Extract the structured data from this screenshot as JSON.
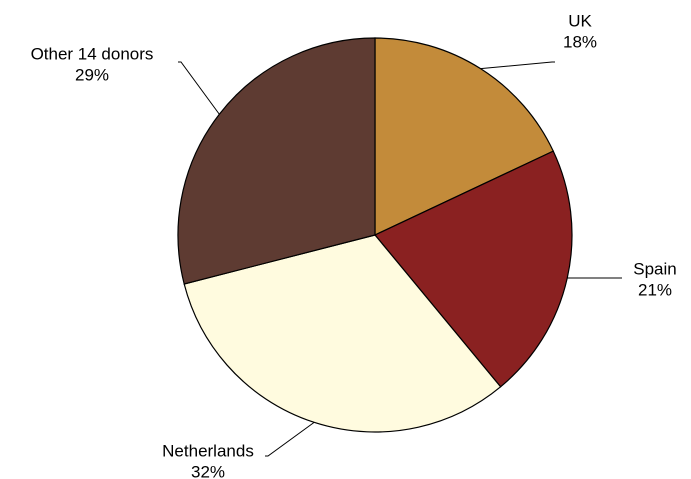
{
  "chart_data": {
    "type": "pie",
    "categories": [
      "UK",
      "Spain",
      "Netherlands",
      "Other 14 donors"
    ],
    "values": [
      18,
      21,
      32,
      29
    ],
    "value_labels": [
      "18%",
      "21%",
      "32%",
      "29%"
    ],
    "colors": [
      "#C38B3A",
      "#8A2121",
      "#FFFBDF",
      "#5E3B32"
    ]
  }
}
